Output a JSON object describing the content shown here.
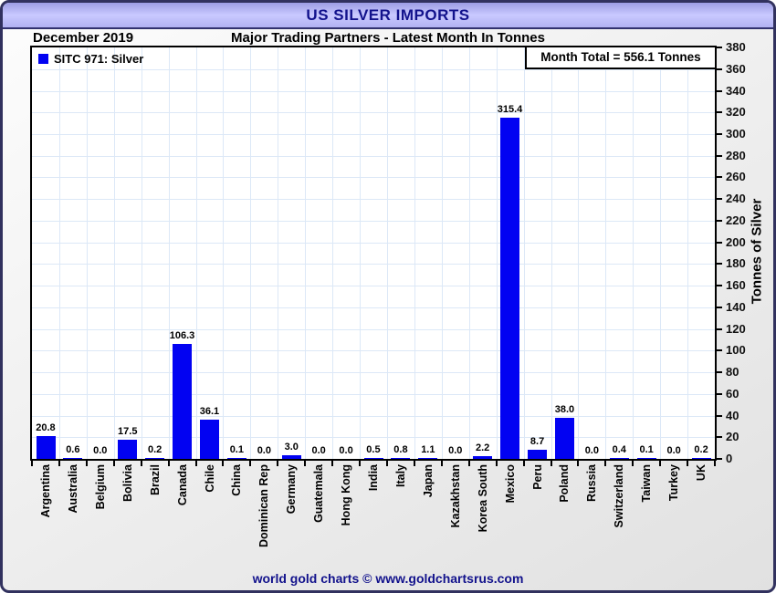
{
  "window": {
    "title": "US SILVER IMPORTS"
  },
  "header": {
    "date_label": "December 2019",
    "subtitle": "Major Trading Partners - Latest Month In Tonnes"
  },
  "legend": {
    "label": "SITC 971: Silver"
  },
  "annotations": {
    "month_total": "Month Total = 556.1 Tonnes"
  },
  "footer": {
    "credit": "world gold charts © www.goldchartsrus.com"
  },
  "colors": {
    "bar": "#0202f2",
    "grid": "#dce8f7",
    "title_text": "#12128c",
    "axis": "#000000"
  },
  "chart_data": {
    "type": "bar",
    "title": "US SILVER IMPORTS",
    "subtitle": "Major Trading Partners - Latest Month In Tonnes",
    "period": "December 2019",
    "month_total_tonnes": 556.1,
    "legend_entries": [
      "SITC 971: Silver"
    ],
    "legend_position": "top-left",
    "categories": [
      "Argentina",
      "Australia",
      "Belgium",
      "Bolivia",
      "Brazil",
      "Canada",
      "Chile",
      "China",
      "Dominican Rep",
      "Germany",
      "Guatemala",
      "Hong Kong",
      "India",
      "Italy",
      "Japan",
      "Kazakhstan",
      "Korea South",
      "Mexico",
      "Peru",
      "Poland",
      "Russia",
      "Switzerland",
      "Taiwan",
      "Turkey",
      "UK"
    ],
    "values": [
      20.8,
      0.6,
      0.0,
      17.5,
      0.2,
      106.3,
      36.1,
      0.1,
      0.0,
      3.0,
      0.0,
      0.0,
      0.5,
      0.8,
      1.1,
      0.0,
      2.2,
      315.4,
      8.7,
      38.0,
      0.0,
      0.4,
      0.1,
      0.0,
      0.2
    ],
    "xlabel": "",
    "ylabel": "Tonnes of Silver",
    "ylim": [
      0,
      380
    ],
    "ytick_step": 20,
    "grid": true,
    "value_labels": true
  }
}
